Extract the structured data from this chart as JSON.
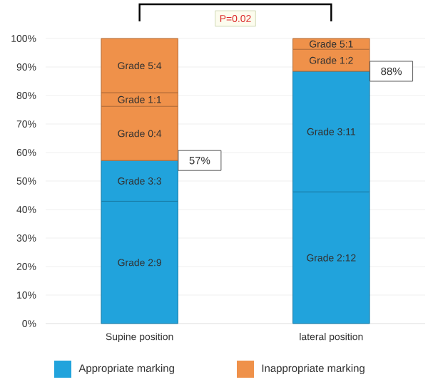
{
  "chart_data": {
    "type": "bar",
    "stacked": true,
    "categories": [
      "Supine position",
      "lateral position"
    ],
    "series": [
      {
        "name": "Appropriate marking",
        "color": "#21a3dc",
        "values": [
          42.9,
          46.2
        ],
        "value_labels": [
          "Grade 2:9",
          "Grade 2:12"
        ]
      },
      {
        "color": "#21a3dc",
        "values": [
          14.3,
          42.3
        ],
        "value_labels": [
          "Grade 3:3",
          "Grade 3:11"
        ]
      },
      {
        "name": "Inappropriate marking",
        "color": "#ef914a",
        "values": [
          19.0,
          null
        ],
        "value_labels": [
          "Grade 0:4",
          null
        ]
      },
      {
        "color": "#ef914a",
        "values": [
          4.8,
          7.7
        ],
        "value_labels": [
          "Grade 1:1",
          "Grade 1:2"
        ]
      },
      {
        "color": "#ef914a",
        "values": [
          19.0,
          3.8
        ],
        "value_labels": [
          "Grade 5:4",
          "Grade 5:1"
        ]
      }
    ],
    "ylim": [
      0,
      100
    ],
    "yticks": [
      {
        "value": 0,
        "label": "0%"
      },
      {
        "value": 10,
        "label": "10%"
      },
      {
        "value": 20,
        "label": "20%"
      },
      {
        "value": 30,
        "label": "30%"
      },
      {
        "value": 40,
        "label": "40%"
      },
      {
        "value": 50,
        "label": "50%"
      },
      {
        "value": 60,
        "label": "60%"
      },
      {
        "value": 70,
        "label": "70%"
      },
      {
        "value": 80,
        "label": "80%"
      },
      {
        "value": 90,
        "label": "90%"
      },
      {
        "value": 100,
        "label": "100%"
      }
    ],
    "grid": "y",
    "legend": "bottom",
    "annotations": [
      {
        "text": "P=0.02"
      },
      "57%",
      "88%"
    ]
  }
}
